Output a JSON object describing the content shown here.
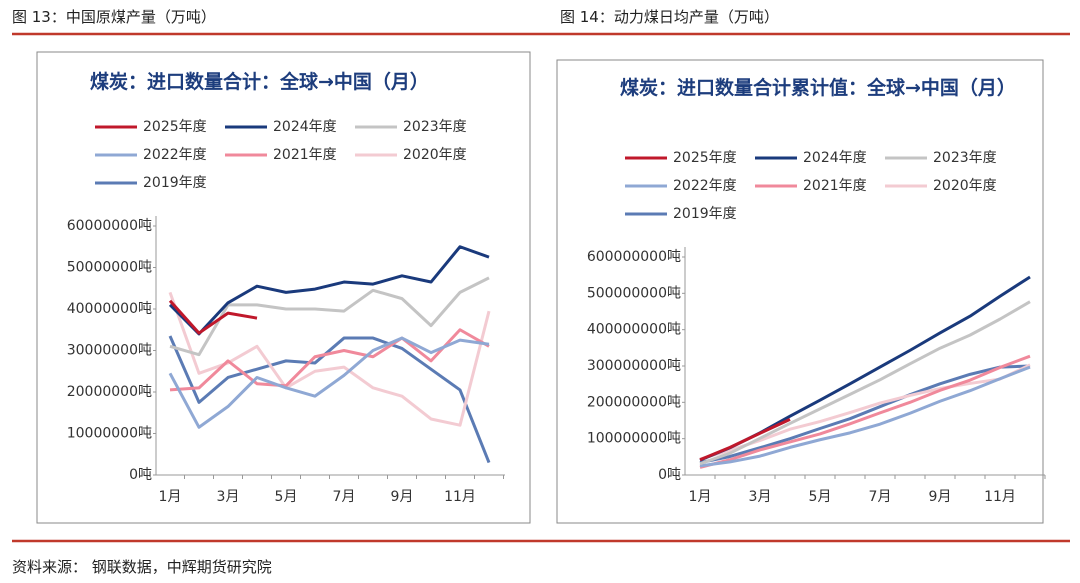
{
  "header": {
    "left": "图 13：中国原煤产量（万吨）",
    "right": "图 14：动力煤日均产量（万吨）"
  },
  "footer": "资料来源： 钢联数据，中辉期货研究院",
  "chart_data": [
    {
      "type": "line",
      "title": "煤炭：进口数量合计：全球→中国（月）",
      "categories": [
        "1月",
        null,
        "3月",
        null,
        "5月",
        null,
        "7月",
        null,
        "9月",
        null,
        "11月",
        null
      ],
      "ylim": [
        0,
        60000000
      ],
      "yticks": [
        {
          "value": 0,
          "label": "0吨"
        },
        {
          "value": 10000000,
          "label": "10000000吨"
        },
        {
          "value": 20000000,
          "label": "20000000吨"
        },
        {
          "value": 30000000,
          "label": "30000000吨"
        },
        {
          "value": 40000000,
          "label": "40000000吨"
        },
        {
          "value": 50000000,
          "label": "50000000吨"
        },
        {
          "value": 60000000,
          "label": "60000000吨"
        }
      ],
      "series": [
        {
          "name": "2025年度",
          "color": "#c0182b",
          "values": [
            42000000,
            34200000,
            39000000,
            37800000,
            null,
            null,
            null,
            null,
            null,
            null,
            null,
            null
          ]
        },
        {
          "name": "2024年度",
          "color": "#1a3a7c",
          "values": [
            41000000,
            34000000,
            41500000,
            45500000,
            44000000,
            44800000,
            46500000,
            46000000,
            48000000,
            46500000,
            55000000,
            52500000
          ]
        },
        {
          "name": "2023年度",
          "color": "#c4c4c4",
          "values": [
            31000000,
            29000000,
            41000000,
            41000000,
            40000000,
            40000000,
            39500000,
            44500000,
            42500000,
            36000000,
            44000000,
            47500000
          ]
        },
        {
          "name": "2022年度",
          "color": "#8fa8d4",
          "values": [
            24500000,
            11500000,
            16500000,
            23500000,
            21000000,
            19000000,
            24000000,
            30000000,
            33000000,
            29500000,
            32500000,
            31500000
          ]
        },
        {
          "name": "2021年度",
          "color": "#f0899b",
          "values": [
            20500000,
            21000000,
            27500000,
            22000000,
            21500000,
            28500000,
            30000000,
            28500000,
            33000000,
            27500000,
            35000000,
            31000000
          ]
        },
        {
          "name": "2020年度",
          "color": "#f3cbd2",
          "values": [
            44000000,
            24500000,
            27000000,
            31000000,
            21000000,
            25000000,
            26000000,
            21000000,
            19000000,
            13500000,
            12000000,
            39500000
          ]
        },
        {
          "name": "2019年度",
          "color": "#5b7bb4",
          "values": [
            33500000,
            17500000,
            23500000,
            25500000,
            27500000,
            27000000,
            33000000,
            33000000,
            30500000,
            25500000,
            20500000,
            3000000
          ]
        }
      ]
    },
    {
      "type": "line",
      "title": "煤炭：进口数量合计累计值：全球→中国（月）",
      "categories": [
        "1月",
        null,
        "3月",
        null,
        "5月",
        null,
        "7月",
        null,
        "9月",
        null,
        "11月",
        null
      ],
      "ylim": [
        0,
        600000000
      ],
      "yticks": [
        {
          "value": 0,
          "label": "0吨"
        },
        {
          "value": 100000000,
          "label": "100000000吨"
        },
        {
          "value": 200000000,
          "label": "200000000吨"
        },
        {
          "value": 300000000,
          "label": "300000000吨"
        },
        {
          "value": 400000000,
          "label": "400000000吨"
        },
        {
          "value": 500000000,
          "label": "500000000吨"
        },
        {
          "value": 600000000,
          "label": "600000000吨"
        }
      ],
      "series": [
        {
          "name": "2025年度",
          "color": "#c0182b",
          "values": [
            42000000,
            76000000,
            115000000,
            153000000,
            null,
            null,
            null,
            null,
            null,
            null,
            null,
            null
          ]
        },
        {
          "name": "2024年度",
          "color": "#1a3a7c",
          "values": [
            41000000,
            75000000,
            116000000,
            162000000,
            206000000,
            251000000,
            297000000,
            343000000,
            391000000,
            437000000,
            492000000,
            545000000
          ]
        },
        {
          "name": "2023年度",
          "color": "#c4c4c4",
          "values": [
            31000000,
            60000000,
            101000000,
            142000000,
            182000000,
            222000000,
            262000000,
            306000000,
            349000000,
            385000000,
            429000000,
            477000000
          ]
        },
        {
          "name": "2022年度",
          "color": "#8fa8d4",
          "values": [
            25000000,
            36000000,
            52000000,
            76000000,
            97000000,
            116000000,
            140000000,
            170000000,
            203000000,
            232000000,
            265000000,
            297000000
          ]
        },
        {
          "name": "2021年度",
          "color": "#f0899b",
          "values": [
            21000000,
            42000000,
            69000000,
            91000000,
            113000000,
            141000000,
            171000000,
            200000000,
            233000000,
            261000000,
            296000000,
            327000000
          ]
        },
        {
          "name": "2020年度",
          "color": "#f3cbd2",
          "values": [
            44000000,
            68000000,
            95000000,
            126000000,
            147000000,
            172000000,
            198000000,
            219000000,
            238000000,
            252000000,
            264000000,
            303000000
          ]
        },
        {
          "name": "2019年度",
          "color": "#5b7bb4",
          "values": [
            34000000,
            51000000,
            75000000,
            100000000,
            128000000,
            155000000,
            188000000,
            221000000,
            251000000,
            277000000,
            297000000,
            300000000
          ]
        }
      ]
    }
  ]
}
